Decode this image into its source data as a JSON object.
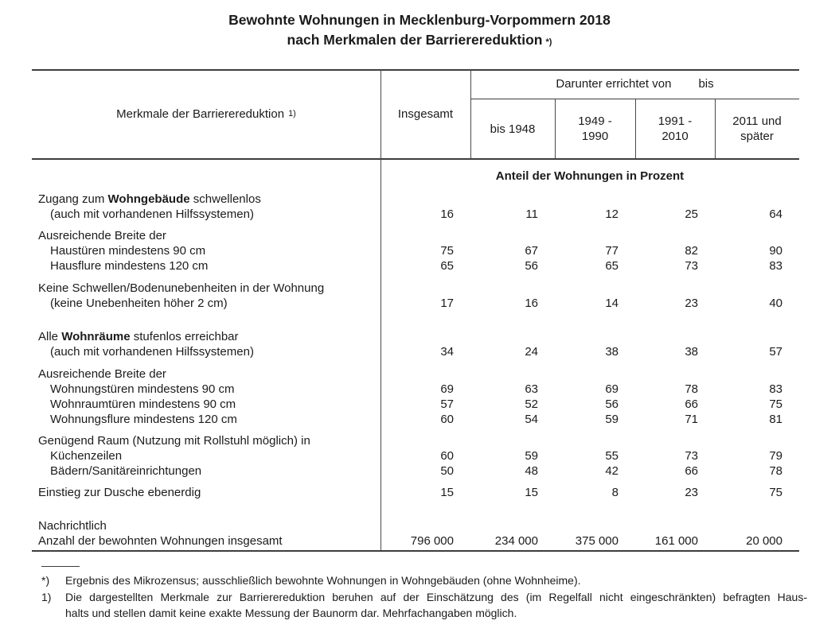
{
  "title": {
    "line1": "Bewohnte Wohnungen in Mecklenburg-Vorpommern 2018",
    "line2": "nach Merkmalen der Barrierereduktion",
    "line2_ref": "*)"
  },
  "table": {
    "stub_header": "Merkmale der Barrierereduktion",
    "stub_header_ref": "1)",
    "total_col_header": "Insgesamt",
    "group_header_left": "Darunter errichtet von",
    "group_header_right": "bis",
    "year_col_headers": [
      "bis 1948",
      "1949 - 1990",
      "1991 - 2010",
      "2011 und später"
    ],
    "unit_header": "Anteil der Wohnungen in Prozent",
    "columns": [
      "Insgesamt",
      "bis 1948",
      "1949 - 1990",
      "1991 - 2010",
      "2011 und später"
    ],
    "rows": [
      {
        "parts": [
          {
            "t": "Zugang zum "
          },
          {
            "t": "Wohngebäude",
            "b": 1
          },
          {
            "t": " schwellenlos"
          }
        ],
        "indent": 0,
        "values": null,
        "gap": 0
      },
      {
        "parts": [
          {
            "t": "(auch mit vorhandenen Hilfssystemen)"
          }
        ],
        "indent": 1,
        "values": [
          "16",
          "11",
          "12",
          "25",
          "64"
        ],
        "gap": 0
      },
      {
        "parts": [
          {
            "t": "Ausreichende Breite der"
          }
        ],
        "indent": 0,
        "values": null,
        "gap": 8
      },
      {
        "parts": [
          {
            "t": "Haustüren mindestens 90 cm"
          }
        ],
        "indent": 1,
        "values": [
          "75",
          "67",
          "77",
          "82",
          "90"
        ],
        "gap": 0
      },
      {
        "parts": [
          {
            "t": "Hausflure mindestens 120 cm"
          }
        ],
        "indent": 1,
        "values": [
          "65",
          "56",
          "65",
          "73",
          "83"
        ],
        "gap": 0
      },
      {
        "parts": [
          {
            "t": "Keine Schwellen/Bodenunebenheiten in der Wohnung"
          }
        ],
        "indent": 0,
        "values": null,
        "gap": 9
      },
      {
        "parts": [
          {
            "t": "(keine Unebenheiten höher 2 cm)"
          }
        ],
        "indent": 1,
        "values": [
          "17",
          "16",
          "14",
          "23",
          "40"
        ],
        "gap": 0
      },
      {
        "parts": [
          {
            "t": "Alle "
          },
          {
            "t": "Wohnräume",
            "b": 1
          },
          {
            "t": " stufenlos erreichbar"
          }
        ],
        "indent": 0,
        "values": null,
        "gap": 23
      },
      {
        "parts": [
          {
            "t": "(auch mit vorhandenen Hilfssystemen)"
          }
        ],
        "indent": 1,
        "values": [
          "34",
          "24",
          "38",
          "38",
          "57"
        ],
        "gap": 0
      },
      {
        "parts": [
          {
            "t": "Ausreichende Breite der"
          }
        ],
        "indent": 0,
        "values": null,
        "gap": 9
      },
      {
        "parts": [
          {
            "t": "Wohnungstüren mindestens 90 cm"
          }
        ],
        "indent": 1,
        "values": [
          "69",
          "63",
          "69",
          "78",
          "83"
        ],
        "gap": 0
      },
      {
        "parts": [
          {
            "t": "Wohnraumtüren mindestens 90 cm"
          }
        ],
        "indent": 1,
        "values": [
          "57",
          "52",
          "56",
          "66",
          "75"
        ],
        "gap": 0
      },
      {
        "parts": [
          {
            "t": "Wohnungsflure mindestens 120 cm"
          }
        ],
        "indent": 1,
        "values": [
          "60",
          "54",
          "59",
          "71",
          "81"
        ],
        "gap": 0
      },
      {
        "parts": [
          {
            "t": "Genügend Raum (Nutzung mit Rollstuhl möglich) in"
          }
        ],
        "indent": 0,
        "values": null,
        "gap": 8
      },
      {
        "parts": [
          {
            "t": "Küchenzeilen"
          }
        ],
        "indent": 1,
        "values": [
          "60",
          "59",
          "55",
          "73",
          "79"
        ],
        "gap": 0
      },
      {
        "parts": [
          {
            "t": "Bädern/Sanitäreinrichtungen"
          }
        ],
        "indent": 1,
        "values": [
          "50",
          "48",
          "42",
          "66",
          "78"
        ],
        "gap": 0
      },
      {
        "parts": [
          {
            "t": "Einstieg zur Dusche ebenerdig"
          }
        ],
        "indent": 0,
        "values": [
          "15",
          "15",
          "8",
          "23",
          "75"
        ],
        "gap": 8
      },
      {
        "parts": [
          {
            "t": "Nachrichtlich"
          }
        ],
        "indent": 0,
        "values": null,
        "gap": 23
      },
      {
        "parts": [
          {
            "t": "Anzahl der bewohnten Wohnungen insgesamt"
          }
        ],
        "indent": 0,
        "values": [
          "796 000",
          "234 000",
          "375 000",
          "161 000",
          "20 000"
        ],
        "gap": 0
      }
    ]
  },
  "footnotes": [
    {
      "marker": "*)",
      "lines": [
        "Ergebnis des Mikrozensus; ausschließlich bewohnte Wohnungen in Wohngebäuden (ohne Wohnheime)."
      ],
      "justify": 0
    },
    {
      "marker": "1)",
      "lines": [
        "Die dargestellten Merkmale zur Barrierereduktion beruhen auf der Einschätzung des (im Regelfall nicht eingeschränkten) befragten Haus-",
        "halts und stellen damit keine exakte Messung der Baunorm dar. Mehrfachangaben möglich."
      ],
      "justify": 1
    }
  ]
}
